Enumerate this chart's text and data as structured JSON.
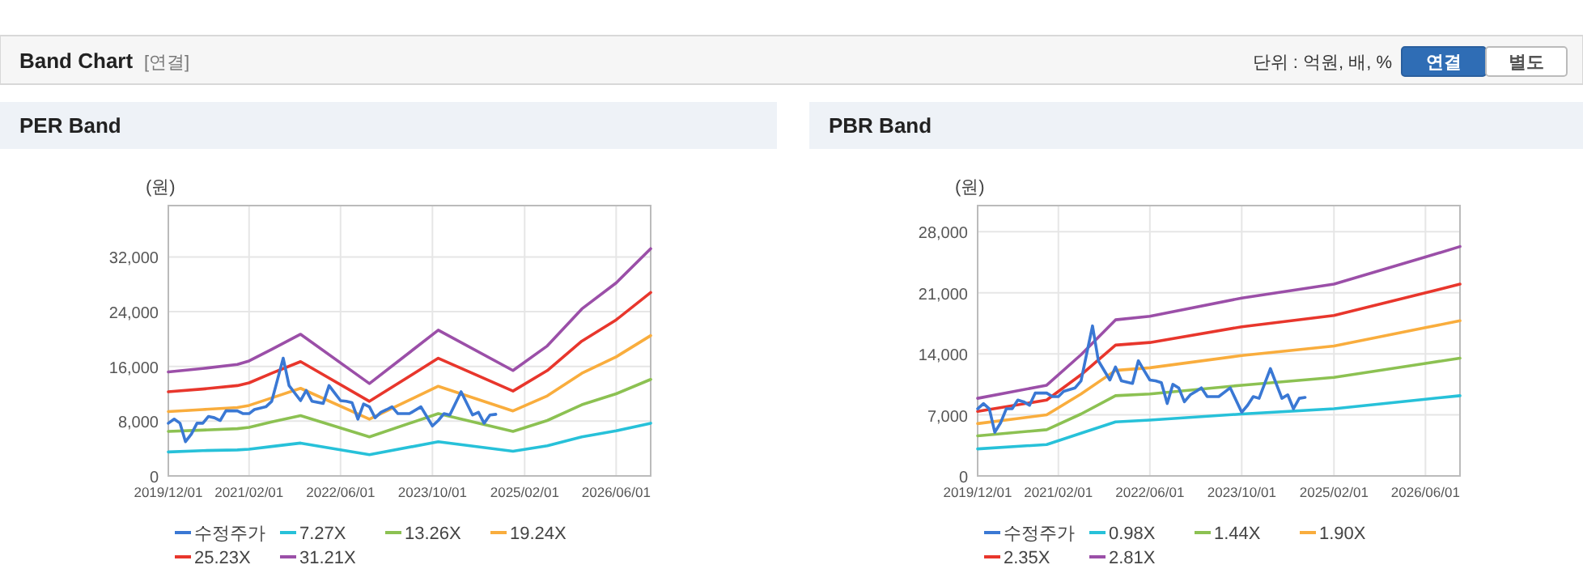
{
  "chart_data": [
    {
      "type": "other",
      "title": "Band Chart",
      "subtitle": "[연결]",
      "annotations": [
        "단위 : 억원, 배, %",
        "연결",
        "별도"
      ]
    },
    {
      "type": "line",
      "title": "PER Band",
      "ylabel": "(원)",
      "xlim": [
        "2019-12",
        "2026-12"
      ],
      "xticks": [
        {
          "value": "2019-12",
          "label": "2019/12/01"
        },
        {
          "value": "2021-02",
          "label": "2021/02/01"
        },
        {
          "value": "2022-06",
          "label": "2022/06/01"
        },
        {
          "value": "2023-10",
          "label": "2023/10/01"
        },
        {
          "value": "2025-02",
          "label": "2025/02/01"
        },
        {
          "value": "2026-06",
          "label": "2026/06/01"
        }
      ],
      "ylim": [
        0,
        39500
      ],
      "yticks": [
        {
          "value": 0,
          "label": "0"
        },
        {
          "value": 8000,
          "label": "8,000"
        },
        {
          "value": 16000,
          "label": "16,000"
        },
        {
          "value": 24000,
          "label": "24,000"
        },
        {
          "value": 32000,
          "label": "32,000"
        }
      ],
      "grid": true,
      "legend": "bottom",
      "series": [
        {
          "name": "수정주가",
          "color": "#3a78d4",
          "x": [
            "2019-12",
            "2020-01",
            "2020-02",
            "2020-03",
            "2020-04",
            "2020-05",
            "2020-06",
            "2020-07",
            "2020-08",
            "2020-09",
            "2020-10",
            "2020-12",
            "2021-01",
            "2021-02",
            "2021-03",
            "2021-05",
            "2021-06",
            "2021-07",
            "2021-08",
            "2021-09",
            "2021-11",
            "2021-12",
            "2022-01",
            "2022-03",
            "2022-04",
            "2022-05",
            "2022-06",
            "2022-07",
            "2022-08",
            "2022-09",
            "2022-10",
            "2022-11",
            "2022-12",
            "2023-01",
            "2023-02",
            "2023-03",
            "2023-04",
            "2023-06",
            "2023-08",
            "2023-10",
            "2023-11",
            "2023-12",
            "2024-01",
            "2024-03",
            "2024-05",
            "2024-06",
            "2024-07",
            "2024-08",
            "2024-09"
          ],
          "values": [
            7700,
            8300,
            7700,
            5000,
            6100,
            7700,
            7700,
            8700,
            8500,
            8100,
            9500,
            9500,
            9100,
            9100,
            9700,
            10100,
            10900,
            14000,
            17200,
            13200,
            11000,
            12500,
            10900,
            10600,
            13200,
            12100,
            11000,
            10900,
            10700,
            8300,
            10500,
            10100,
            8500,
            9300,
            9700,
            10100,
            9100,
            9100,
            10100,
            7300,
            8100,
            9100,
            8900,
            12300,
            8900,
            9300,
            7700,
            8900,
            9000
          ]
        },
        {
          "name": "7.27X",
          "color": "#27c1d9",
          "x": [
            "2019-12",
            "2020-06",
            "2020-12",
            "2021-02",
            "2021-06",
            "2021-11",
            "2022-11",
            "2023-11",
            "2024-12",
            "2025-06",
            "2025-12",
            "2026-06",
            "2026-12"
          ],
          "values": [
            3500,
            3700,
            3800,
            3900,
            4300,
            4800,
            3100,
            5000,
            3600,
            4400,
            5700,
            6600,
            7700
          ]
        },
        {
          "name": "13.26X",
          "color": "#8cc152",
          "x": [
            "2019-12",
            "2020-06",
            "2020-12",
            "2021-02",
            "2021-06",
            "2021-11",
            "2022-11",
            "2023-11",
            "2024-12",
            "2025-06",
            "2025-12",
            "2026-06",
            "2026-12"
          ],
          "values": [
            6500,
            6700,
            6900,
            7100,
            7900,
            8800,
            5700,
            9100,
            6500,
            8100,
            10400,
            12000,
            14100
          ]
        },
        {
          "name": "19.24X",
          "color": "#f9ad3d",
          "x": [
            "2019-12",
            "2020-06",
            "2020-12",
            "2021-02",
            "2021-06",
            "2021-11",
            "2022-11",
            "2023-11",
            "2024-12",
            "2025-06",
            "2025-12",
            "2026-06",
            "2026-12"
          ],
          "values": [
            9400,
            9700,
            10000,
            10300,
            11400,
            12800,
            8300,
            13100,
            9500,
            11700,
            15000,
            17400,
            20500
          ]
        },
        {
          "name": "25.23X",
          "color": "#e8362c",
          "x": [
            "2019-12",
            "2020-06",
            "2020-12",
            "2021-02",
            "2021-06",
            "2021-11",
            "2022-11",
            "2023-11",
            "2024-12",
            "2025-06",
            "2025-12",
            "2026-06",
            "2026-12"
          ],
          "values": [
            12300,
            12700,
            13200,
            13600,
            15000,
            16700,
            10900,
            17200,
            12400,
            15400,
            19700,
            22800,
            26800
          ]
        },
        {
          "name": "31.21X",
          "color": "#9b4fa8",
          "x": [
            "2019-12",
            "2020-06",
            "2020-12",
            "2021-02",
            "2021-06",
            "2021-11",
            "2022-11",
            "2023-11",
            "2024-12",
            "2025-06",
            "2025-12",
            "2026-06",
            "2026-12"
          ],
          "values": [
            15200,
            15700,
            16300,
            16800,
            18500,
            20700,
            13500,
            21300,
            15400,
            19000,
            24400,
            28200,
            33200
          ]
        }
      ]
    },
    {
      "type": "line",
      "title": "PBR Band",
      "ylabel": "(원)",
      "xlim": [
        "2019-12",
        "2026-12"
      ],
      "xticks": [
        {
          "value": "2019-12",
          "label": "2019/12/01"
        },
        {
          "value": "2021-02",
          "label": "2021/02/01"
        },
        {
          "value": "2022-06",
          "label": "2022/06/01"
        },
        {
          "value": "2023-10",
          "label": "2023/10/01"
        },
        {
          "value": "2025-02",
          "label": "2025/02/01"
        },
        {
          "value": "2026-06",
          "label": "2026/06/01"
        }
      ],
      "ylim": [
        0,
        31000
      ],
      "yticks": [
        {
          "value": 0,
          "label": "0"
        },
        {
          "value": 7000,
          "label": "7,000"
        },
        {
          "value": 14000,
          "label": "14,000"
        },
        {
          "value": 21000,
          "label": "21,000"
        },
        {
          "value": 28000,
          "label": "28,000"
        }
      ],
      "grid": true,
      "legend": "bottom",
      "series": [
        {
          "name": "수정주가",
          "color": "#3a78d4",
          "x": [
            "2019-12",
            "2020-01",
            "2020-02",
            "2020-03",
            "2020-04",
            "2020-05",
            "2020-06",
            "2020-07",
            "2020-08",
            "2020-09",
            "2020-10",
            "2020-12",
            "2021-01",
            "2021-02",
            "2021-03",
            "2021-05",
            "2021-06",
            "2021-07",
            "2021-08",
            "2021-09",
            "2021-11",
            "2021-12",
            "2022-01",
            "2022-03",
            "2022-04",
            "2022-05",
            "2022-06",
            "2022-07",
            "2022-08",
            "2022-09",
            "2022-10",
            "2022-11",
            "2022-12",
            "2023-01",
            "2023-02",
            "2023-03",
            "2023-04",
            "2023-06",
            "2023-08",
            "2023-10",
            "2023-11",
            "2023-12",
            "2024-01",
            "2024-03",
            "2024-05",
            "2024-06",
            "2024-07",
            "2024-08",
            "2024-09"
          ],
          "values": [
            7700,
            8300,
            7700,
            5000,
            6100,
            7700,
            7700,
            8700,
            8500,
            8100,
            9500,
            9500,
            9100,
            9100,
            9700,
            10100,
            10900,
            14000,
            17200,
            13200,
            11000,
            12500,
            10900,
            10600,
            13200,
            12100,
            11000,
            10900,
            10700,
            8300,
            10500,
            10100,
            8500,
            9300,
            9700,
            10100,
            9100,
            9100,
            10100,
            7300,
            8100,
            9100,
            8900,
            12300,
            8900,
            9300,
            7700,
            8900,
            9000
          ]
        },
        {
          "name": "0.98X",
          "color": "#27c1d9",
          "x": [
            "2019-12",
            "2020-12",
            "2021-06",
            "2021-12",
            "2022-06",
            "2023-10",
            "2025-02",
            "2026-06",
            "2026-12"
          ],
          "values": [
            3100,
            3600,
            4900,
            6200,
            6400,
            7100,
            7700,
            8800,
            9200
          ]
        },
        {
          "name": "1.44X",
          "color": "#8cc152",
          "x": [
            "2019-12",
            "2020-12",
            "2021-06",
            "2021-12",
            "2022-06",
            "2023-10",
            "2025-02",
            "2026-06",
            "2026-12"
          ],
          "values": [
            4600,
            5300,
            7100,
            9200,
            9400,
            10400,
            11300,
            12900,
            13500
          ]
        },
        {
          "name": "1.90X",
          "color": "#f9ad3d",
          "x": [
            "2019-12",
            "2020-12",
            "2021-06",
            "2021-12",
            "2022-06",
            "2023-10",
            "2025-02",
            "2026-06",
            "2026-12"
          ],
          "values": [
            6000,
            7000,
            9400,
            12100,
            12400,
            13800,
            14900,
            17000,
            17800
          ]
        },
        {
          "name": "2.35X",
          "color": "#e8362c",
          "x": [
            "2019-12",
            "2020-12",
            "2021-06",
            "2021-12",
            "2022-06",
            "2023-10",
            "2025-02",
            "2026-06",
            "2026-12"
          ],
          "values": [
            7400,
            8700,
            11600,
            15000,
            15300,
            17100,
            18400,
            21000,
            22000
          ]
        },
        {
          "name": "2.81X",
          "color": "#9b4fa8",
          "x": [
            "2019-12",
            "2020-12",
            "2021-06",
            "2021-12",
            "2022-06",
            "2023-10",
            "2025-02",
            "2026-06",
            "2026-12"
          ],
          "values": [
            8900,
            10400,
            13900,
            17900,
            18300,
            20400,
            22000,
            25100,
            26300
          ]
        }
      ]
    }
  ]
}
